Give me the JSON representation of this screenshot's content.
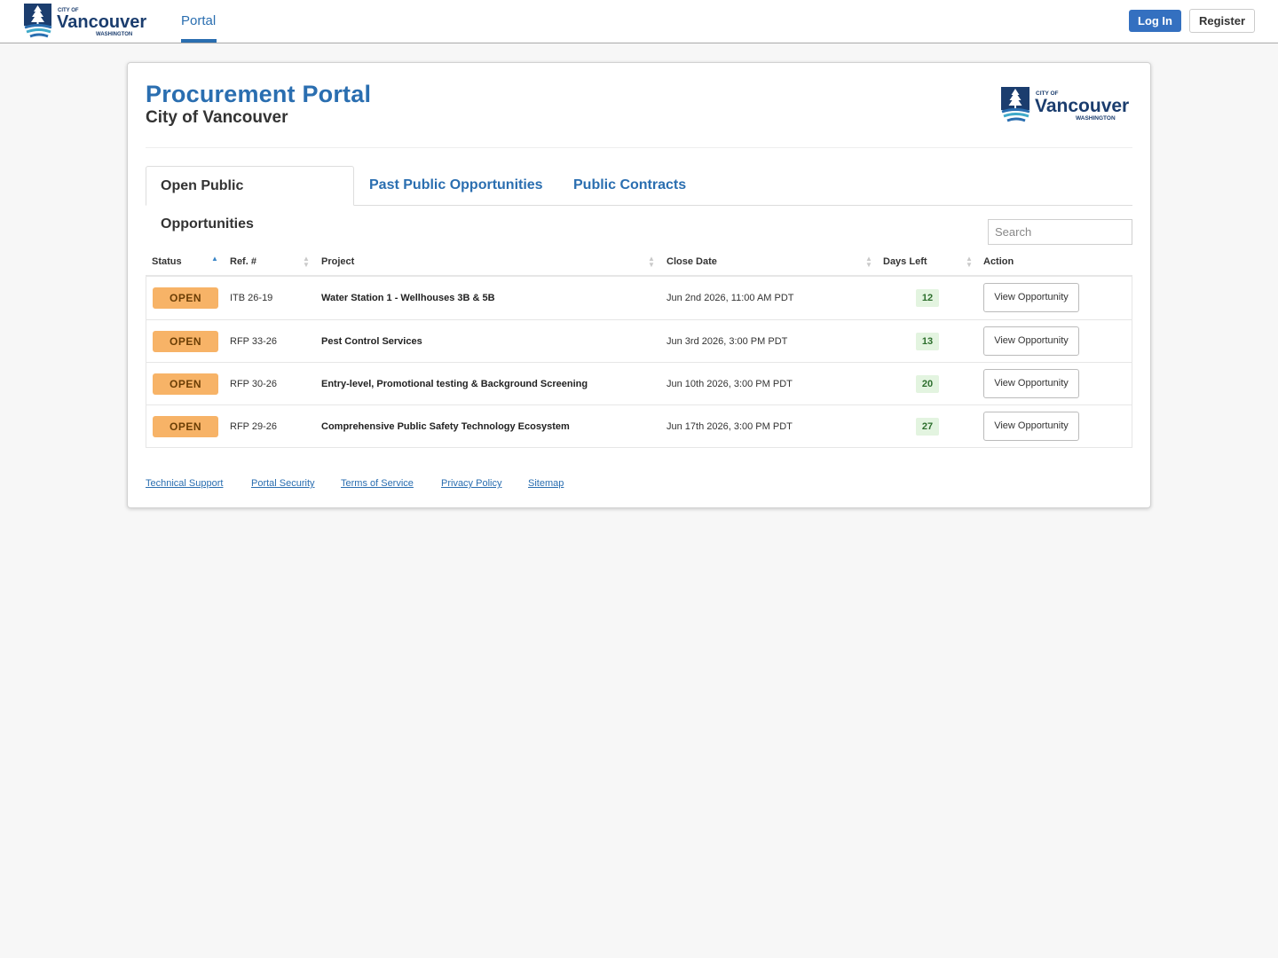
{
  "nav": {
    "logo": {
      "line1": "CITY OF",
      "line2": "Vancouver",
      "line3": "WASHINGTON"
    },
    "portal_label": "Portal",
    "login_label": "Log In",
    "register_label": "Register"
  },
  "header": {
    "title": "Procurement Portal",
    "subtitle": "City of Vancouver",
    "logo": {
      "line1": "CITY OF",
      "line2": "Vancouver",
      "line3": "WASHINGTON"
    }
  },
  "tabs": [
    {
      "label": "Open Public Opportunities",
      "active": true
    },
    {
      "label": "Past Public Opportunities",
      "active": false
    },
    {
      "label": "Public Contracts",
      "active": false
    }
  ],
  "search": {
    "placeholder": "Search"
  },
  "table": {
    "columns": [
      "Status",
      "Ref. #",
      "Project",
      "Close Date",
      "Days Left",
      "Action"
    ],
    "sorted_column": "Status",
    "sort_direction": "ascending",
    "rows": [
      {
        "status": "OPEN",
        "ref": "ITB 26-19",
        "project": "Water Station 1 - Wellhouses 3B & 5B",
        "close_date": "Jun 2nd 2026, 11:00 AM PDT",
        "days_left": "12",
        "action": "View Opportunity"
      },
      {
        "status": "OPEN",
        "ref": "RFP 33-26",
        "project": "Pest Control Services",
        "close_date": "Jun 3rd 2026, 3:00 PM PDT",
        "days_left": "13",
        "action": "View Opportunity"
      },
      {
        "status": "OPEN",
        "ref": "RFP 30-26",
        "project": "Entry-level, Promotional testing & Background Screening",
        "close_date": "Jun 10th 2026, 3:00 PM PDT",
        "days_left": "20",
        "action": "View Opportunity"
      },
      {
        "status": "OPEN",
        "ref": "RFP 29-26",
        "project": "Comprehensive Public Safety Technology Ecosystem",
        "close_date": "Jun 17th 2026, 3:00 PM PDT",
        "days_left": "27",
        "action": "View Opportunity"
      }
    ]
  },
  "footer": {
    "links": [
      "Technical Support",
      "Portal Security",
      "Terms of Service",
      "Privacy Policy",
      "Sitemap"
    ]
  },
  "colors": {
    "brand_blue": "#2a6eb0",
    "login_button": "#3470c0",
    "status_open": "#f7b367",
    "days_left_bg": "#e3f4e0",
    "days_left_text": "#2c6e2c"
  }
}
